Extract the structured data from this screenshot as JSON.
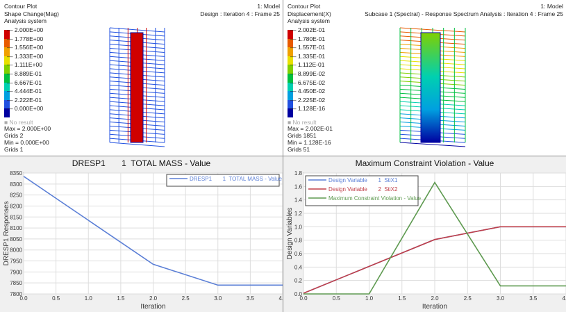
{
  "left_contour": {
    "title": [
      "Contour Plot",
      "Shape Change(Mag)",
      "Analysis system"
    ],
    "model": "1: Model",
    "frame": "Design : Iteration 4 : Frame 25",
    "levels": [
      "2.000E+00",
      "1.778E+00",
      "1.556E+00",
      "1.333E+00",
      "1.111E+00",
      "8.889E-01",
      "6.667E-01",
      "4.444E-01",
      "2.222E-01",
      "0.000E+00"
    ],
    "no_result": "No result",
    "max": "Max = 2.000E+00",
    "max_grid": "Grids 2",
    "min": "Min = 0.000E+00",
    "min_grid": "Grids 1"
  },
  "right_contour": {
    "title": [
      "Contour Plot",
      "Displacement(X)",
      "Analysis system"
    ],
    "model": "1: Model",
    "frame": "Subcase 1 (Spectral) - Response Spectrum Analysis : Iteration 4 : Frame 25",
    "levels": [
      "2.002E-01",
      "1.780E-01",
      "1.557E-01",
      "1.335E-01",
      "1.112E-01",
      "8.899E-02",
      "6.675E-02",
      "4.450E-02",
      "2.225E-02",
      "1.128E-16"
    ],
    "no_result": "No result",
    "max": "Max = 2.002E-01",
    "max_grid": "Grids 1851",
    "min": "Min = 1.128E-16",
    "min_grid": "Grids 51"
  },
  "colors": {
    "scale": [
      "#d00000",
      "#e85a00",
      "#f0a000",
      "#e8e000",
      "#80d000",
      "#00c040",
      "#00d0b0",
      "#00a0e0",
      "#2050e0",
      "#0000a0"
    ]
  },
  "chart_data": [
    {
      "type": "line",
      "title": "DRESP1       1  TOTAL MASS - Value",
      "xlabel": "Iteration",
      "ylabel": "DRESP1 Responses",
      "xlim": [
        0,
        4
      ],
      "ylim": [
        7800,
        8350
      ],
      "grid": true,
      "legend": "top-right",
      "xticks": [
        "0.0",
        "0.5",
        "1.0",
        "1.5",
        "2.0",
        "2.5",
        "3.0",
        "3.5",
        "4.0"
      ],
      "yticks": [
        "7800",
        "7850",
        "7900",
        "7950",
        "8000",
        "8050",
        "8100",
        "8150",
        "8200",
        "8250",
        "8300",
        "8350"
      ],
      "x": [
        0,
        1,
        2,
        3,
        4
      ],
      "series": [
        {
          "name": "DRESP1       1  TOTAL MASS - Value",
          "color": "#5b7fd6",
          "values": [
            8335,
            8135,
            7935,
            7840,
            7840
          ]
        }
      ]
    },
    {
      "type": "line",
      "title": "Maximum Constraint Violation - Value",
      "xlabel": "Iteration",
      "ylabel": "Design Variables",
      "xlim": [
        0,
        4
      ],
      "ylim": [
        0,
        1.8
      ],
      "grid": true,
      "legend": "top-left",
      "xticks": [
        "0.0",
        "0.5",
        "1.0",
        "1.5",
        "2.0",
        "2.5",
        "3.0",
        "3.5",
        "4.0"
      ],
      "yticks": [
        "0.0",
        "0.2",
        "0.4",
        "0.6",
        "0.8",
        "1.0",
        "1.2",
        "1.4",
        "1.6",
        "1.8"
      ],
      "x": [
        0,
        1,
        2,
        3,
        4
      ],
      "series": [
        {
          "name": "Design Variable       1  StiX1",
          "color": "#5b7fd6",
          "values": [
            0.01,
            0.41,
            0.81,
            1.0,
            1.0
          ]
        },
        {
          "name": "Design Variable       2  StiX2",
          "color": "#c0404a",
          "values": [
            0.01,
            0.41,
            0.81,
            1.0,
            1.0
          ]
        },
        {
          "name": "Maximum Constraint Violation - Value",
          "color": "#5e9a50",
          "values": [
            0,
            0,
            1.66,
            0.12,
            0.12
          ]
        }
      ]
    }
  ]
}
